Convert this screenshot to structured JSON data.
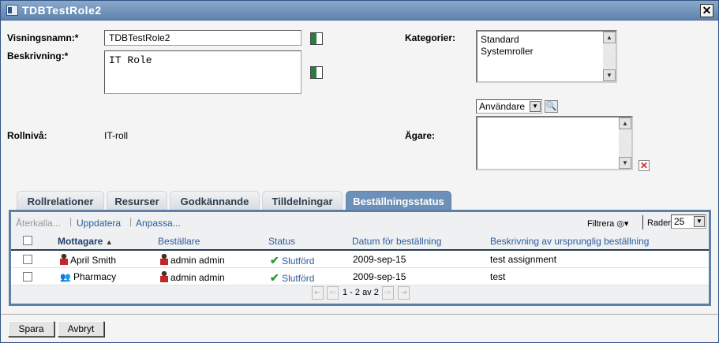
{
  "window": {
    "title": "TDBTestRole2",
    "close_icon": "close-icon"
  },
  "form": {
    "display_name_label": "Visningsnamn:*",
    "display_name_value": "TDBTestRole2",
    "description_label": "Beskrivning:*",
    "description_value": "IT Role",
    "level_label": "Rollnivå:",
    "level_value": "IT-roll",
    "categories_label": "Kategorier:",
    "categories": [
      "Standard",
      "Systemroller"
    ],
    "owner_label": "Ägare:",
    "owner_type": "Användare"
  },
  "tabs": [
    {
      "label": "Rollrelationer"
    },
    {
      "label": "Resurser"
    },
    {
      "label": "Godkännande"
    },
    {
      "label": "Tilldelningar"
    },
    {
      "label": "Beställningsstatus",
      "active": true
    }
  ],
  "toolbar": {
    "revoke": "Återkalla...",
    "refresh": "Uppdatera",
    "customize": "Anpassa...",
    "filter": "Filtrera",
    "rows_label": "Rader:",
    "rows_value": "25"
  },
  "table": {
    "headers": [
      "Mottagare",
      "Beställare",
      "Status",
      "Datum för beställning",
      "Beskrivning av ursprunglig beställning"
    ],
    "rows": [
      {
        "recipient": "April Smith",
        "recipient_type": "user",
        "requester": "admin admin",
        "status": "Slutförd",
        "date": "2009-sep-15",
        "description": "test assignment"
      },
      {
        "recipient": "Pharmacy",
        "recipient_type": "group",
        "requester": "admin admin",
        "status": "Slutförd",
        "date": "2009-sep-15",
        "description": "test"
      }
    ]
  },
  "pager": {
    "text": "1 - 2 av 2"
  },
  "footer": {
    "save": "Spara",
    "cancel": "Avbryt"
  }
}
